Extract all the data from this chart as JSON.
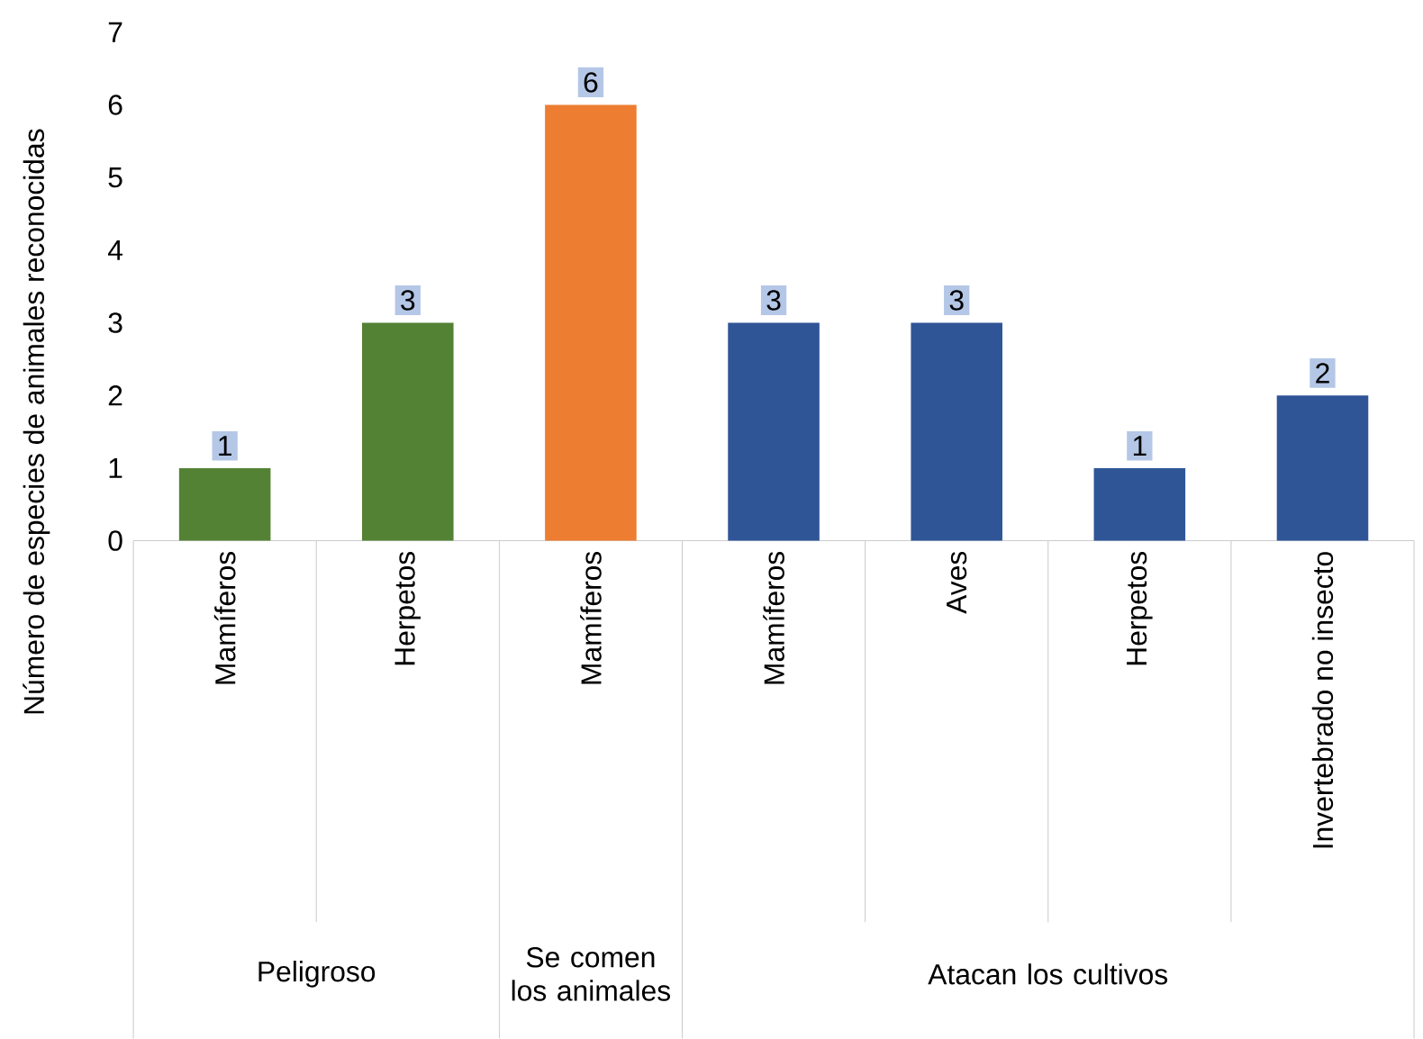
{
  "chart_data": {
    "type": "bar",
    "ylabel": "Número de especies de animales reconocidas",
    "categories": [
      "Mamíferos",
      "Herpetos",
      "Mamíferos",
      "Mamíferos",
      "Aves",
      "Herpetos",
      "Invertebrado no insecto"
    ],
    "values": [
      1,
      3,
      6,
      3,
      3,
      1,
      2
    ],
    "colors": [
      "#548235",
      "#548235",
      "#ed7d31",
      "#2f5597",
      "#2f5597",
      "#2f5597",
      "#2f5597"
    ],
    "ylim": [
      0,
      7
    ],
    "yticks": [
      0,
      1,
      2,
      3,
      4,
      5,
      6,
      7
    ],
    "data_labels": true,
    "grid": false,
    "annotations": [
      "Peligroso",
      "Se comen los animales",
      "Atacan los cultivos"
    ]
  }
}
